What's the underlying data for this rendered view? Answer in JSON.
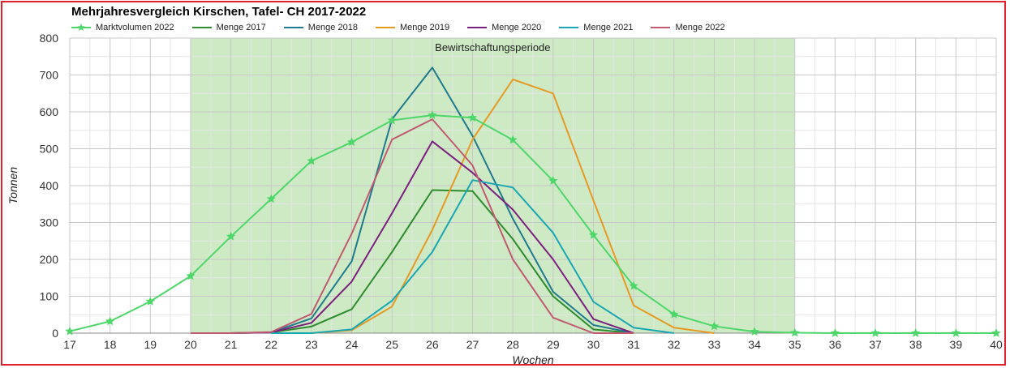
{
  "chart_data": {
    "type": "line",
    "title": "Mehrjahresvergleich Kirschen, Tafel- CH 2017-2022",
    "xlabel": "Wochen",
    "ylabel": "Tonnen",
    "xlim": [
      17,
      40
    ],
    "ylim": [
      0,
      800
    ],
    "yticks": [
      0,
      100,
      200,
      300,
      400,
      500,
      600,
      700,
      800
    ],
    "xticks": [
      17,
      18,
      19,
      20,
      21,
      22,
      23,
      24,
      25,
      26,
      27,
      28,
      29,
      30,
      31,
      32,
      33,
      34,
      35,
      36,
      37,
      38,
      39,
      40
    ],
    "grid": true,
    "legend_position": "top",
    "shaded_region": {
      "x_from": 20,
      "x_to": 35,
      "label": "Bewirtschaftungsperiode",
      "color": "#cdeac4"
    },
    "series": [
      {
        "name": "Marktvolumen 2022",
        "color": "#4fd66a",
        "marker": "star",
        "x": [
          17,
          18,
          19,
          20,
          21,
          22,
          23,
          24,
          25,
          26,
          27,
          28,
          29,
          30,
          31,
          32,
          33,
          34,
          35,
          36,
          37,
          38,
          39,
          40
        ],
        "values": [
          5,
          32,
          86,
          155,
          262,
          364,
          467,
          518,
          577,
          591,
          584,
          524,
          413,
          266,
          128,
          51,
          19,
          4,
          1,
          0,
          0,
          0,
          0,
          0
        ]
      },
      {
        "name": "Menge 2017",
        "color": "#2e8b2e",
        "marker": "none",
        "x": [
          20,
          21,
          22,
          23,
          24,
          25,
          26,
          27,
          28,
          29,
          30,
          31
        ],
        "values": [
          0,
          0,
          2,
          18,
          65,
          220,
          388,
          385,
          255,
          100,
          10,
          0
        ]
      },
      {
        "name": "Menge 2018",
        "color": "#1f7a8c",
        "marker": "none",
        "x": [
          20,
          21,
          22,
          23,
          24,
          25,
          26,
          27,
          28,
          29,
          30,
          31
        ],
        "values": [
          0,
          0,
          2,
          40,
          195,
          580,
          720,
          535,
          310,
          112,
          22,
          0
        ]
      },
      {
        "name": "Menge 2019",
        "color": "#e69a24",
        "marker": "none",
        "x": [
          23,
          24,
          25,
          26,
          27,
          28,
          29,
          30,
          31,
          32,
          33
        ],
        "values": [
          0,
          8,
          72,
          280,
          525,
          688,
          650,
          360,
          75,
          15,
          0
        ]
      },
      {
        "name": "Menge 2020",
        "color": "#7b1f7e",
        "marker": "none",
        "x": [
          20,
          21,
          22,
          23,
          24,
          25,
          26,
          27,
          28,
          29,
          30,
          31
        ],
        "values": [
          0,
          0,
          2,
          28,
          140,
          325,
          520,
          435,
          335,
          200,
          38,
          0
        ]
      },
      {
        "name": "Menge 2021",
        "color": "#1aa6b2",
        "marker": "none",
        "x": [
          22,
          23,
          24,
          25,
          26,
          27,
          28,
          29,
          30,
          31,
          32
        ],
        "values": [
          0,
          0,
          10,
          88,
          220,
          415,
          395,
          272,
          85,
          15,
          0
        ]
      },
      {
        "name": "Menge 2022",
        "color": "#c05a70",
        "marker": "none",
        "x": [
          20,
          21,
          22,
          23,
          24,
          25,
          26,
          27,
          28,
          29,
          30,
          31
        ],
        "values": [
          0,
          0,
          3,
          52,
          270,
          525,
          580,
          455,
          200,
          42,
          0,
          0
        ]
      }
    ]
  }
}
